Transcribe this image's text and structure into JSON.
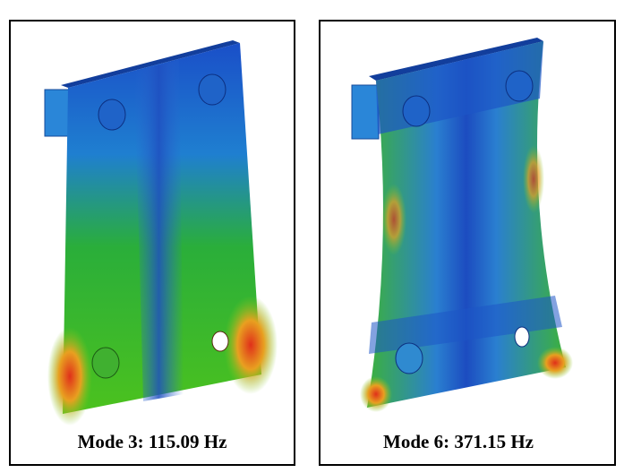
{
  "panels": [
    {
      "caption": "Mode 3: 115.09 Hz"
    },
    {
      "caption": "Mode 6: 371.15 Hz"
    }
  ]
}
